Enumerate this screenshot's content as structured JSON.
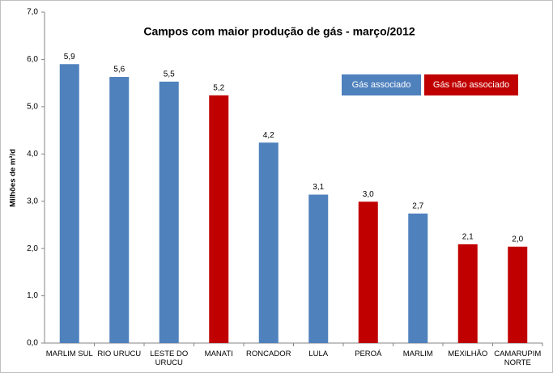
{
  "chart_data": {
    "type": "bar",
    "title": "Campos com maior produção de gás - março/2012",
    "y_label": "Milhões de m³/d",
    "categories": [
      "MARLIM SUL",
      "RIO URUCU",
      "LESTE DO URUCU",
      "MANATI",
      "RONCADOR",
      "LULA",
      "PEROÁ",
      "MARLIM",
      "MEXILHÃO",
      "CAMARUPIM NORTE"
    ],
    "series": [
      {
        "name": "Gás associado",
        "color": "#4f81bd",
        "values": [
          5.9,
          5.63,
          5.53,
          null,
          4.24,
          3.14,
          null,
          2.74,
          null,
          null
        ],
        "value_labels": [
          "5,9",
          "5,6",
          "5,5",
          null,
          "4,2",
          "3,1",
          null,
          "2,7",
          null,
          null
        ]
      },
      {
        "name": "Gás não associado",
        "color": "#c00000",
        "values": [
          null,
          null,
          null,
          5.24,
          null,
          null,
          2.99,
          null,
          2.09,
          2.04
        ],
        "value_labels": [
          null,
          null,
          null,
          "5,2",
          null,
          null,
          "3,0",
          null,
          "2,1",
          "2,0"
        ]
      }
    ],
    "ylim": [
      0,
      7
    ],
    "yticks": [
      {
        "value": 0,
        "label": "0,0"
      },
      {
        "value": 1,
        "label": "1,0"
      },
      {
        "value": 2,
        "label": "2,0"
      },
      {
        "value": 3,
        "label": "3,0"
      },
      {
        "value": 4,
        "label": "4,0"
      },
      {
        "value": 5,
        "label": "5,0"
      },
      {
        "value": 6,
        "label": "6,0"
      },
      {
        "value": 7,
        "label": "7,0"
      }
    ],
    "grid": false,
    "legend": "top-right"
  }
}
